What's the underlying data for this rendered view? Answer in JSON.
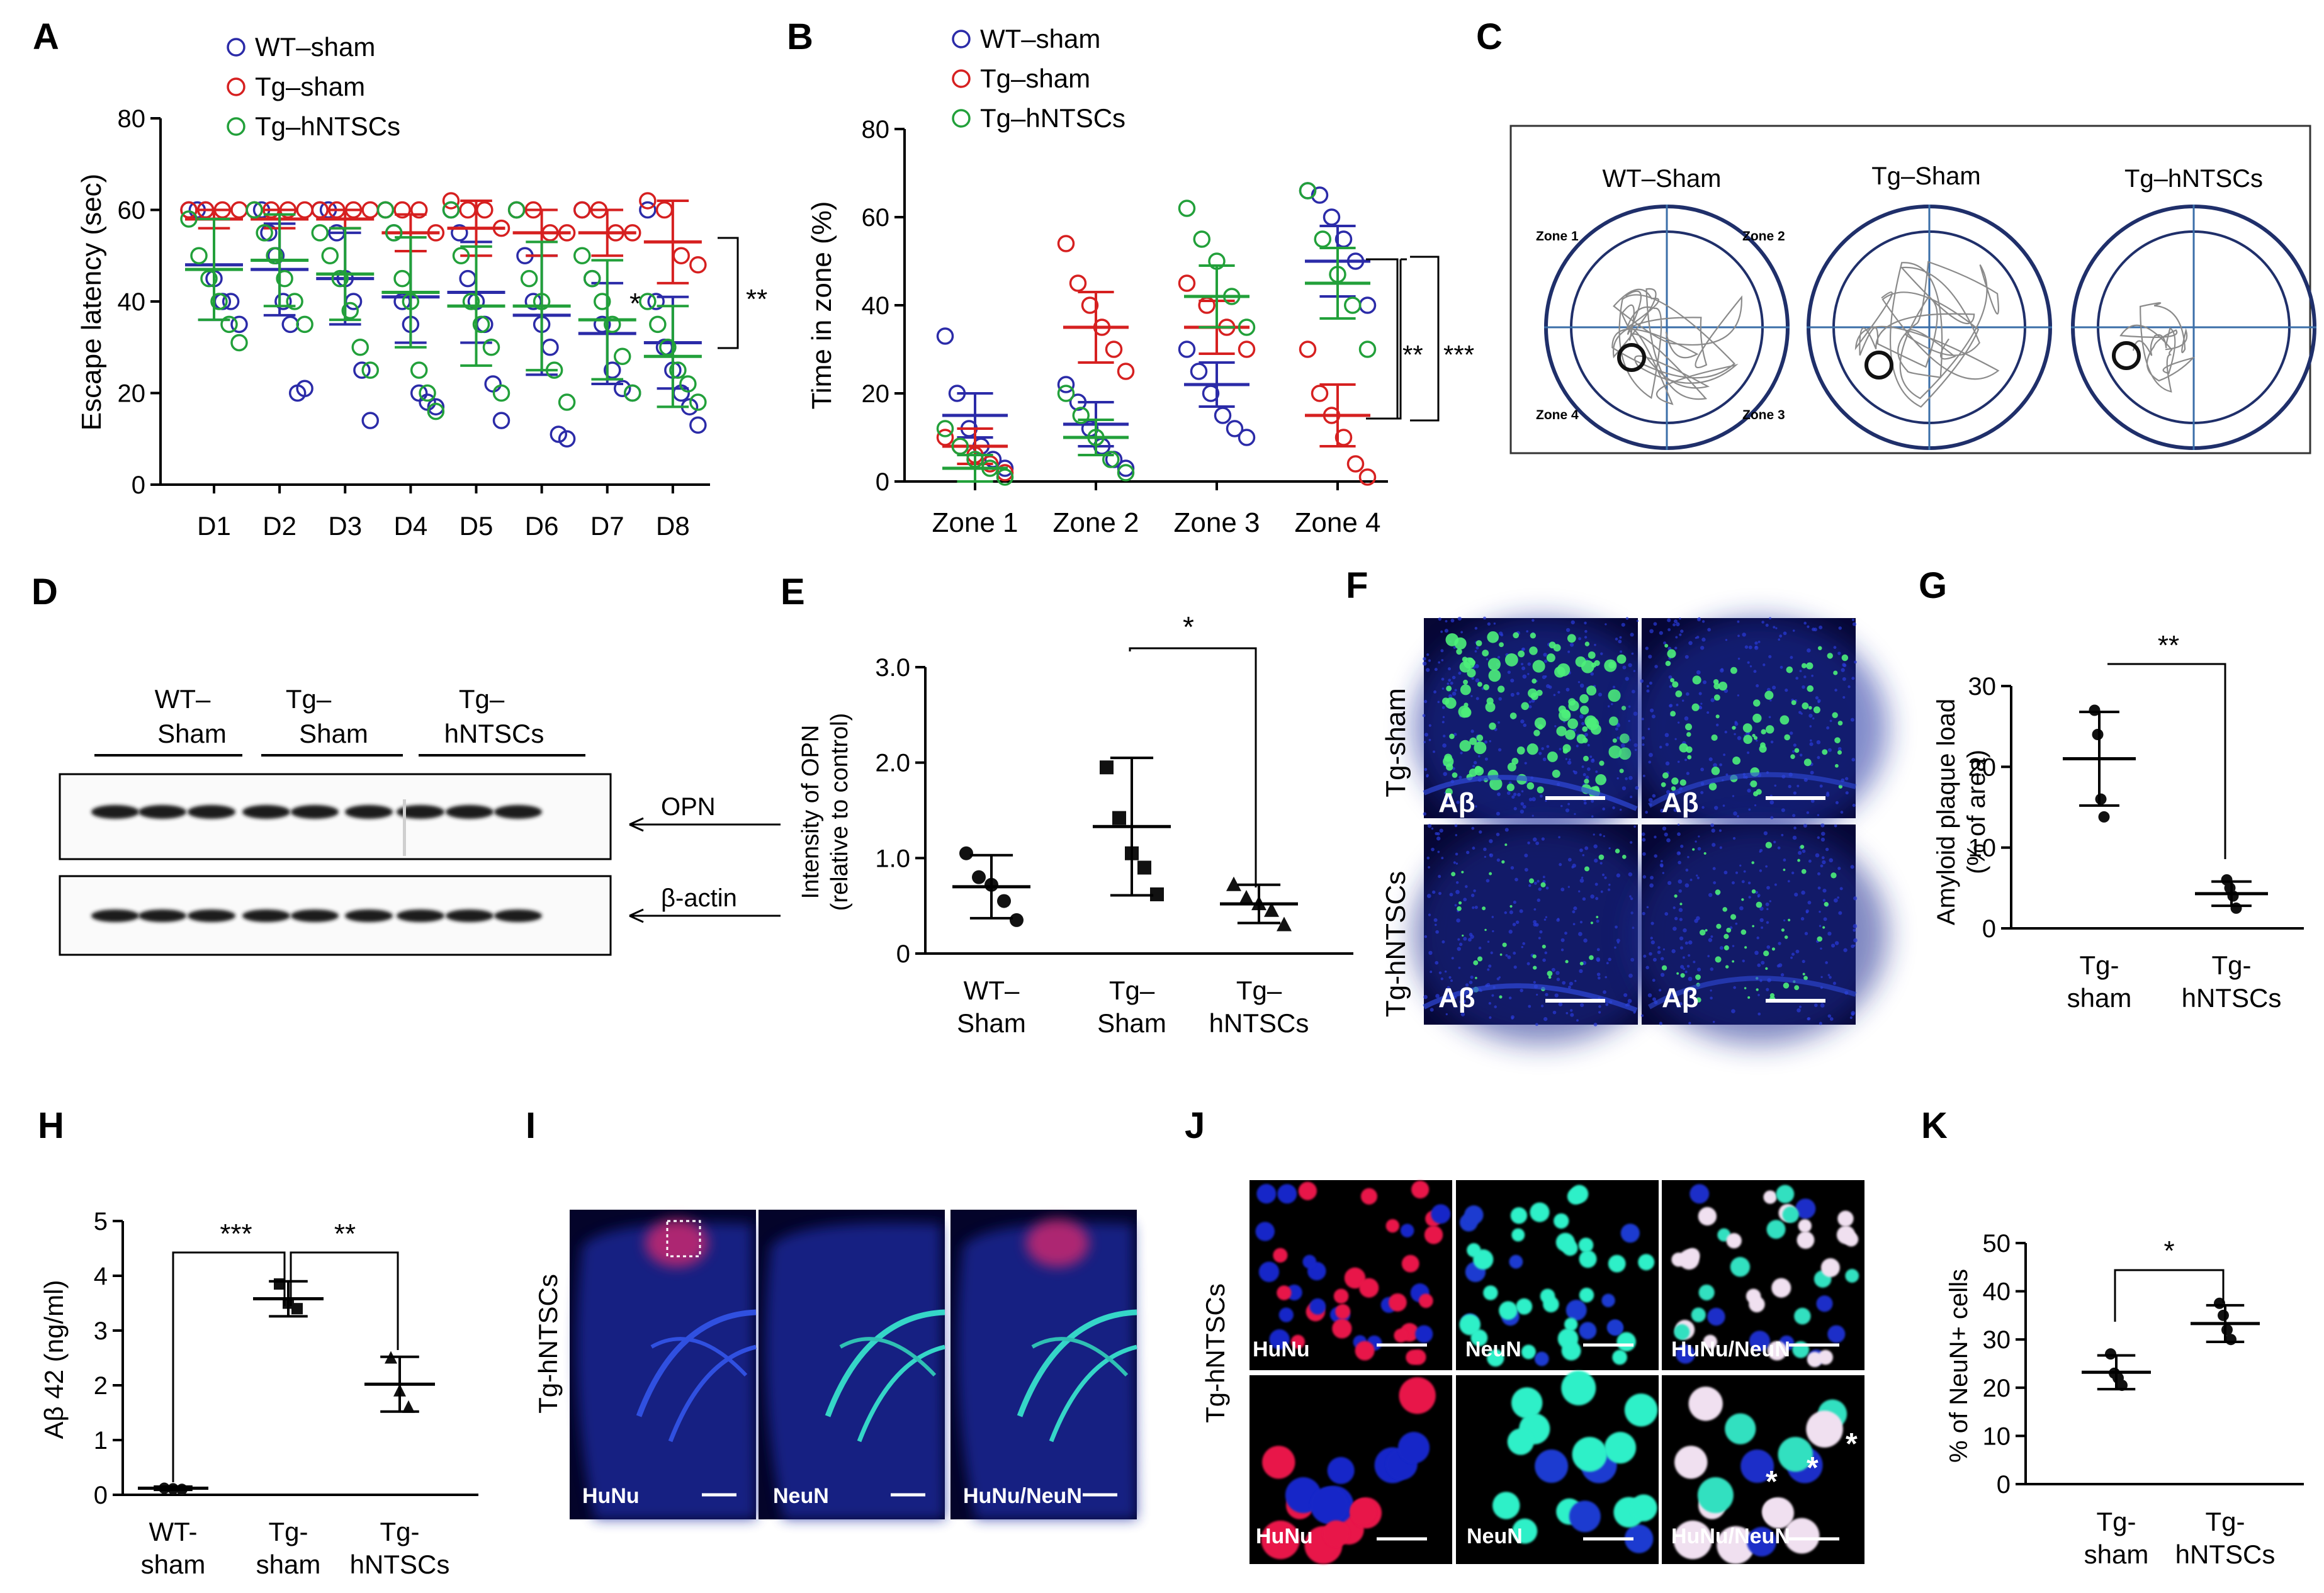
{
  "panels": {
    "A": {
      "label": "A",
      "legend": [
        "WT–sham",
        "Tg–sham",
        "Tg–hNTSCs"
      ],
      "chart_data": {
        "type": "scatter",
        "ylabel": "Escape latency (sec)",
        "yticks": [
          "0",
          "20",
          "40",
          "60",
          "80"
        ],
        "ylim": [
          0,
          80
        ],
        "categories": [
          "D1",
          "D2",
          "D3",
          "D4",
          "D5",
          "D6",
          "D7",
          "D8"
        ],
        "series": [
          {
            "name": "WT–sham",
            "mean": [
              48,
              47,
              45,
              41,
              42,
              37,
              33,
              31
            ],
            "sd": [
              12,
              10,
              10,
              10,
              11,
              13,
              11,
              10
            ],
            "points": [
              [
                60,
                60,
                60,
                45,
                40,
                40,
                35
              ],
              [
                60,
                60,
                55,
                50,
                40,
                35,
                20,
                21
              ],
              [
                60,
                60,
                55,
                45,
                40,
                25,
                14
              ],
              [
                60,
                55,
                40,
                35,
                20,
                18,
                17
              ],
              [
                60,
                55,
                45,
                40,
                35,
                22,
                14
              ],
              [
                60,
                50,
                40,
                35,
                30,
                11,
                10
              ],
              [
                60,
                45,
                35,
                25,
                21,
                20
              ],
              [
                60,
                40,
                30,
                25,
                20,
                17,
                13
              ]
            ]
          },
          {
            "name": "Tg–sham",
            "mean": [
              58,
              58,
              58,
              55,
              56,
              55,
              55,
              53
            ],
            "sd": [
              2,
              2,
              2,
              4,
              6,
              5,
              5,
              9
            ],
            "points": [
              [
                60,
                60,
                60,
                60
              ],
              [
                60,
                60,
                60,
                60
              ],
              [
                60,
                60,
                60,
                60
              ],
              [
                60,
                60,
                60,
                55
              ],
              [
                62,
                60,
                60,
                56
              ],
              [
                60,
                60,
                55,
                55
              ],
              [
                60,
                60,
                55,
                55
              ],
              [
                62,
                60,
                50,
                48
              ]
            ]
          },
          {
            "name": "Tg–hNTSCs",
            "mean": [
              47,
              49,
              46,
              42,
              39,
              39,
              36,
              28
            ],
            "sd": [
              11,
              10,
              10,
              12,
              13,
              14,
              13,
              11
            ],
            "points": [
              [
                58,
                50,
                45,
                40,
                35,
                31
              ],
              [
                60,
                55,
                50,
                45,
                40,
                35
              ],
              [
                55,
                50,
                45,
                38,
                30,
                25
              ],
              [
                60,
                55,
                45,
                40,
                25,
                20,
                16
              ],
              [
                60,
                50,
                40,
                35,
                30,
                20
              ],
              [
                60,
                45,
                40,
                25,
                18
              ],
              [
                50,
                45,
                40,
                35,
                28,
                20
              ],
              [
                40,
                35,
                30,
                25,
                22,
                18
              ]
            ]
          }
        ],
        "annotations": [
          "*",
          "**"
        ]
      }
    },
    "B": {
      "label": "B",
      "legend": [
        "WT–sham",
        "Tg–sham",
        "Tg–hNTSCs"
      ],
      "chart_data": {
        "type": "scatter",
        "ylabel": "Time in zone (%)",
        "yticks": [
          "0",
          "20",
          "40",
          "60",
          "80"
        ],
        "ylim": [
          0,
          80
        ],
        "categories": [
          "Zone 1",
          "Zone 2",
          "Zone 3",
          "Zone 4"
        ],
        "series": [
          {
            "name": "WT–sham",
            "mean": [
              15,
              13,
              22,
              50
            ],
            "sd": [
              5,
              5,
              5,
              8
            ],
            "points": [
              [
                33,
                20,
                12,
                8,
                5,
                3
              ],
              [
                22,
                18,
                12,
                8,
                5,
                3
              ],
              [
                30,
                25,
                20,
                15,
                12,
                10
              ],
              [
                66,
                65,
                60,
                55,
                50,
                40
              ]
            ]
          },
          {
            "name": "Tg–sham",
            "mean": [
              8,
              35,
              35,
              15
            ],
            "sd": [
              4,
              8,
              6,
              7
            ],
            "points": [
              [
                10,
                8,
                6,
                4,
                2
              ],
              [
                54,
                45,
                40,
                35,
                30,
                25
              ],
              [
                45,
                40,
                35,
                30
              ],
              [
                30,
                20,
                15,
                10,
                4,
                1
              ]
            ]
          },
          {
            "name": "Tg–hNTSCs",
            "mean": [
              3,
              10,
              42,
              45
            ],
            "sd": [
              3,
              4,
              7,
              8
            ],
            "points": [
              [
                12,
                8,
                5,
                3,
                1
              ],
              [
                20,
                15,
                10,
                5,
                2
              ],
              [
                62,
                55,
                50,
                42,
                35
              ],
              [
                66,
                55,
                47,
                40,
                30
              ]
            ]
          }
        ],
        "annotations": [
          "**",
          "***"
        ]
      }
    },
    "C": {
      "label": "C",
      "titles": [
        "WT–Sham",
        "Tg–Sham",
        "Tg–hNTSCs"
      ],
      "zones": [
        "Zone 1",
        "Zone 2",
        "Zone 3",
        "Zone 4"
      ]
    },
    "D": {
      "label": "D",
      "groups": [
        [
          "WT–",
          "Sham"
        ],
        [
          "Tg–",
          "Sham"
        ],
        [
          "Tg–",
          "hNTSCs"
        ]
      ],
      "bands": [
        "OPN",
        "β-actin"
      ]
    },
    "E": {
      "label": "E",
      "chart_data": {
        "type": "scatter",
        "ylabel": [
          "Intensity of OPN",
          "(relative to control)"
        ],
        "yticks": [
          "0",
          "1.0",
          "2.0",
          "3.0"
        ],
        "ylim": [
          0,
          3.0
        ],
        "categories": [
          [
            "WT–",
            "Sham"
          ],
          [
            "Tg–",
            "Sham"
          ],
          [
            "Tg–",
            "hNTSCs"
          ]
        ],
        "mean": [
          0.7,
          1.33,
          0.52
        ],
        "sd": [
          0.33,
          0.72,
          0.2
        ],
        "points": [
          [
            1.05,
            0.8,
            0.72,
            0.55,
            0.35
          ],
          [
            1.95,
            1.42,
            1.05,
            0.9,
            0.62
          ],
          [
            0.72,
            0.58,
            0.52,
            0.45,
            0.3
          ]
        ],
        "annotations": [
          "*"
        ]
      }
    },
    "F": {
      "label": "F",
      "rows": [
        "Tg-sham",
        "Tg-hNTSCs"
      ],
      "marker": "Aβ"
    },
    "G": {
      "label": "G",
      "chart_data": {
        "type": "scatter",
        "ylabel": [
          "Amyloid plaque load",
          "(% of area)"
        ],
        "yticks": [
          "0",
          "10",
          "20",
          "30"
        ],
        "ylim": [
          0,
          30
        ],
        "categories": [
          [
            "Tg-",
            "sham"
          ],
          [
            "Tg-",
            "hNTSCs"
          ]
        ],
        "mean": [
          21,
          4.3
        ],
        "sd": [
          5.8,
          1.5
        ],
        "points": [
          [
            27,
            24,
            16,
            13.8
          ],
          [
            6,
            5,
            4,
            2.5
          ]
        ],
        "annotations": [
          "**"
        ]
      }
    },
    "H": {
      "label": "H",
      "chart_data": {
        "type": "scatter",
        "ylabel": "Aβ 42 (ng/ml)",
        "yticks": [
          "0",
          "1",
          "2",
          "3",
          "4",
          "5"
        ],
        "ylim": [
          0,
          5
        ],
        "categories": [
          [
            "WT-",
            "sham"
          ],
          [
            "Tg-",
            "sham"
          ],
          [
            "Tg-",
            "hNTSCs"
          ]
        ],
        "mean": [
          0.12,
          3.58,
          2.02
        ],
        "sd": [
          0.03,
          0.32,
          0.5
        ],
        "points": [
          [
            0.12,
            0.11,
            0.1
          ],
          [
            3.85,
            3.5,
            3.4
          ],
          [
            2.5,
            1.9,
            1.6
          ]
        ],
        "annotations": [
          "***",
          "**"
        ]
      }
    },
    "I": {
      "label": "I",
      "row": "Tg-hNTSCs",
      "channels": [
        "HuNu",
        "NeuN",
        "HuNu/NeuN"
      ]
    },
    "J": {
      "label": "J",
      "row": "Tg-hNTSCs",
      "channels": [
        "HuNu",
        "NeuN",
        "HuNu/NeuN"
      ]
    },
    "K": {
      "label": "K",
      "chart_data": {
        "type": "scatter",
        "ylabel": "% of NeuN+ cells",
        "yticks": [
          "0",
          "10",
          "20",
          "30",
          "40",
          "50"
        ],
        "ylim": [
          0,
          50
        ],
        "categories": [
          [
            "Tg-",
            "sham"
          ],
          [
            "Tg-",
            "hNTSCs"
          ]
        ],
        "mean": [
          23.2,
          33.3
        ],
        "sd": [
          3.5,
          3.8
        ],
        "points": [
          [
            27,
            23,
            22,
            20.5
          ],
          [
            37.5,
            35,
            32,
            30
          ]
        ],
        "annotations": [
          "*"
        ]
      }
    }
  }
}
